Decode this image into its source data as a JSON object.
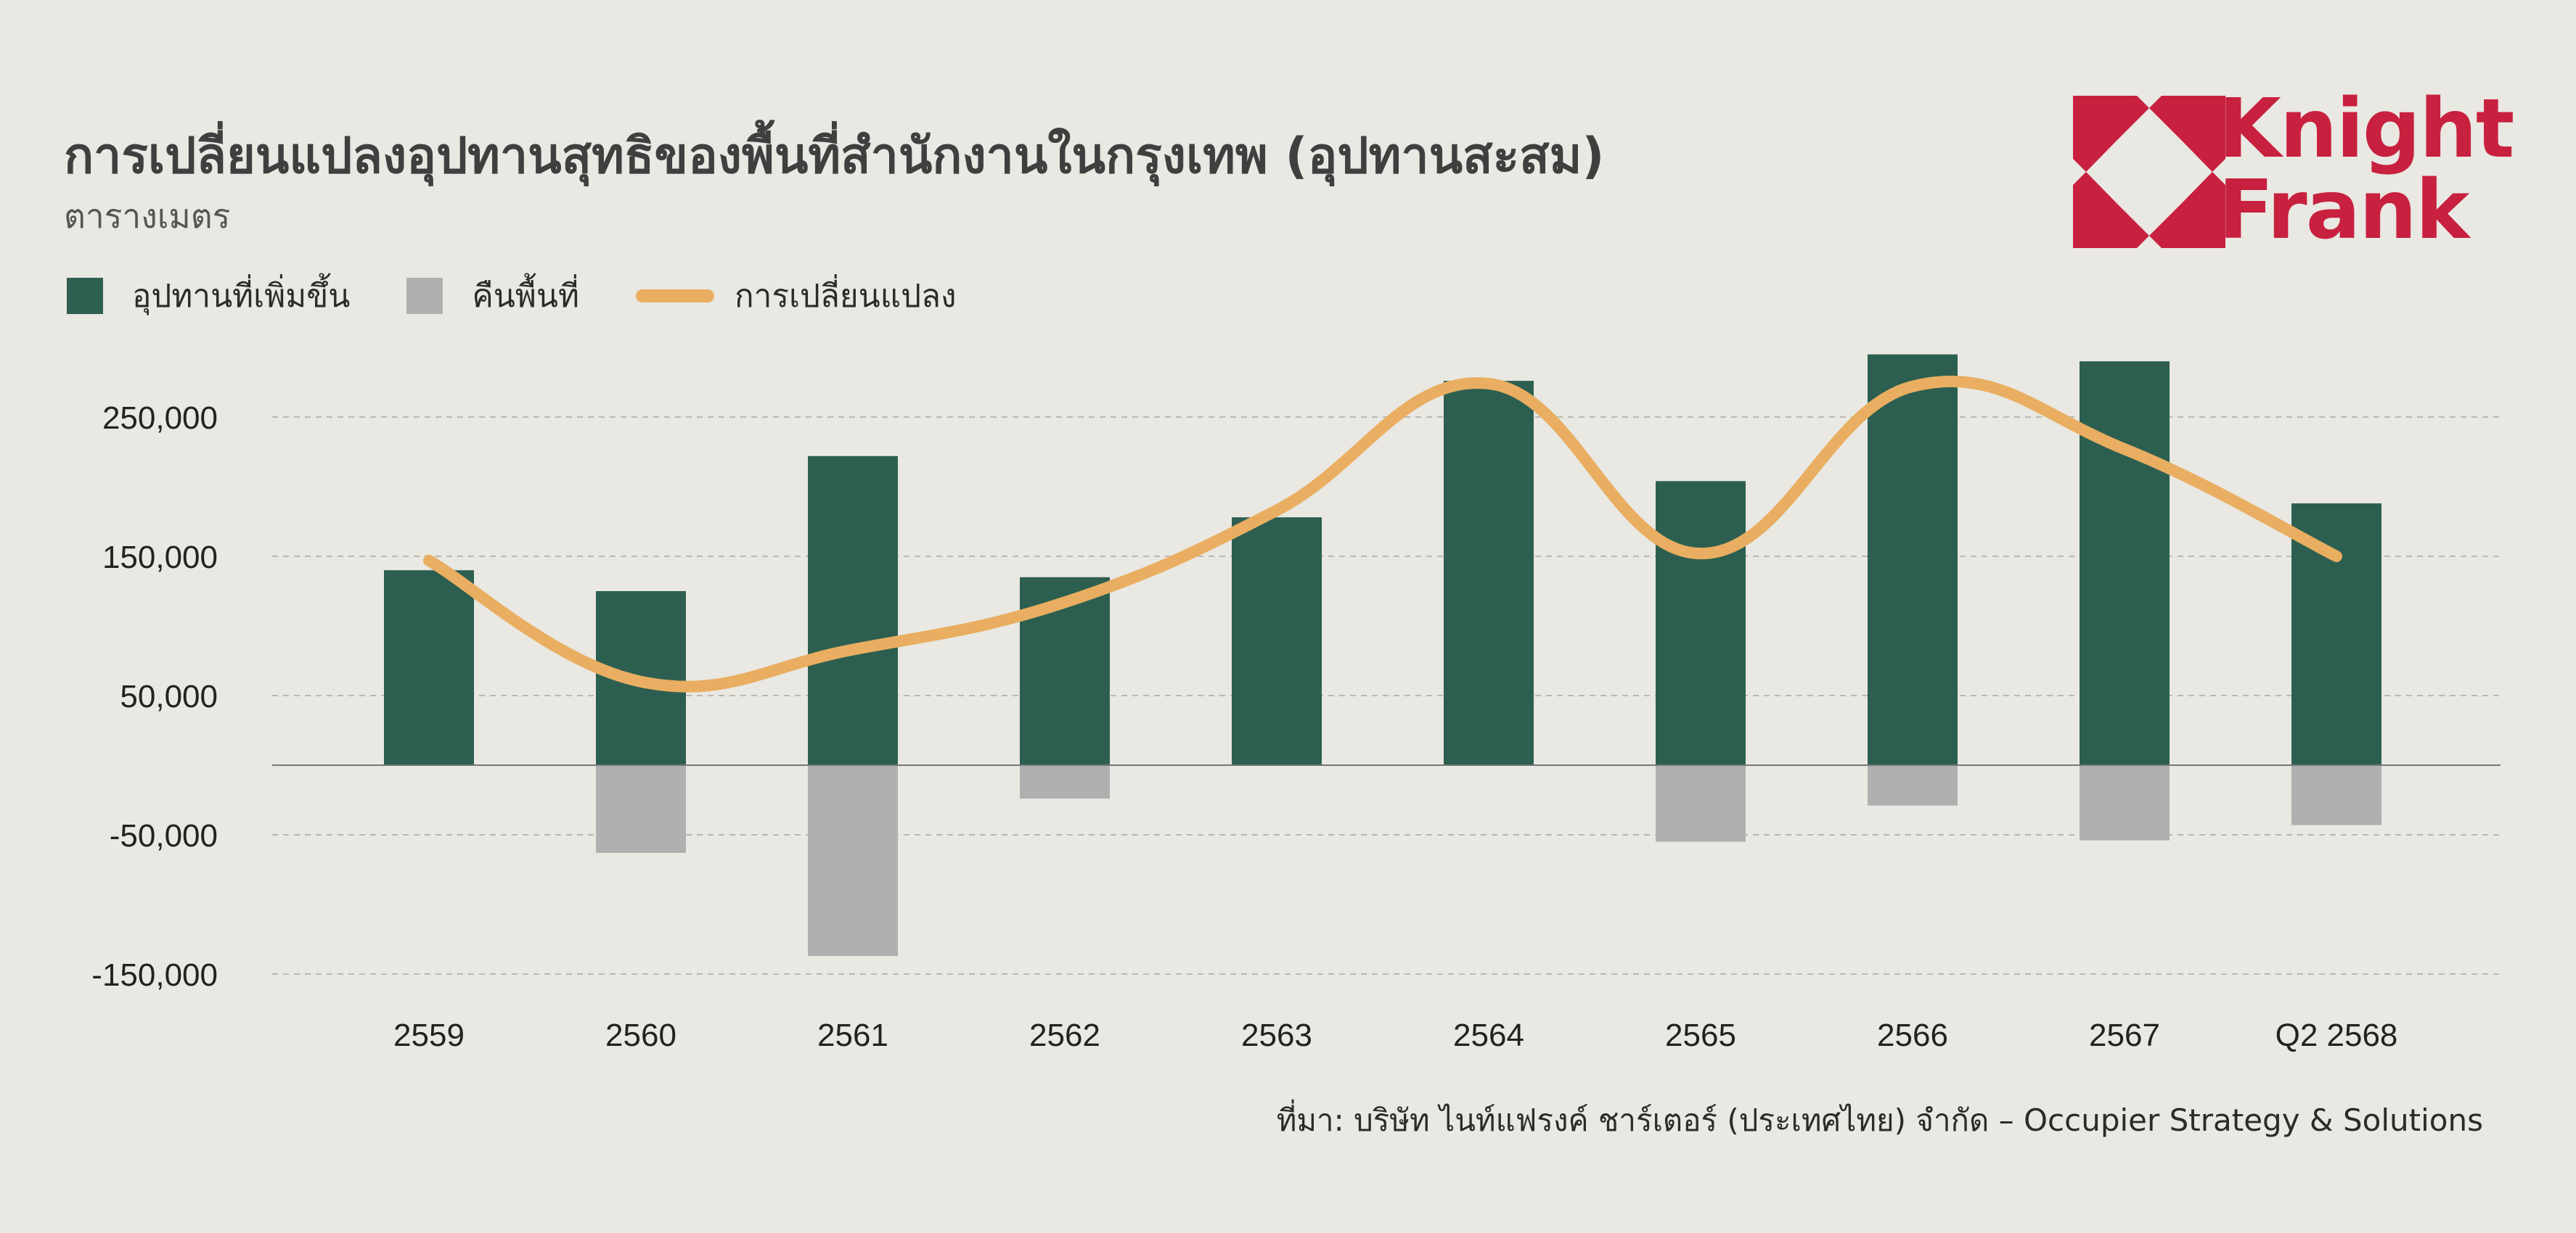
{
  "title": "การเปลี่ยนแปลงอุปทานสุทธิของพื้นที่สำนักงานในกรุงเทพ (อุปทานสะสม)",
  "subtitle": "ตารางเมตร",
  "logo": {
    "line1": "Knight",
    "line2": "Frank",
    "color": "#c8203f"
  },
  "source": "ที่มา: บริษัท ไนท์แฟรงค์ ชาร์เตอร์ (ประเทศไทย) จำกัด – Occupier Strategy & Solutions",
  "colors": {
    "supply": "#2d5f50",
    "withdrawal": "#b0b0b0",
    "change": "#e9ae61"
  },
  "chart_data": {
    "type": "bar",
    "categories": [
      "2559",
      "2560",
      "2561",
      "2562",
      "2563",
      "2564",
      "2565",
      "2566",
      "2567",
      "Q2 2568"
    ],
    "series": [
      {
        "name": "อุปทานที่เพิ่มขึ้น",
        "type": "bar",
        "values": [
          140000,
          125000,
          222000,
          135000,
          178000,
          276000,
          204000,
          295000,
          290000,
          188000
        ]
      },
      {
        "name": "คืนพื้นที่",
        "type": "bar",
        "values": [
          0,
          -63000,
          -137000,
          -24000,
          0,
          0,
          -55000,
          -29000,
          -54000,
          -43000
        ]
      },
      {
        "name": "การเปลี่ยนแปลง",
        "type": "line",
        "values": [
          147000,
          60000,
          83000,
          117000,
          183000,
          274000,
          152000,
          272000,
          227000,
          150000
        ]
      }
    ],
    "yticks": [
      250000,
      150000,
      50000,
      -50000,
      -150000
    ],
    "ytick_labels": [
      "250,000",
      "150,000",
      "50,000",
      "-50,000",
      "-150,000"
    ],
    "ylim": [
      -160000,
      300000
    ],
    "grid": true,
    "legend": "top-left"
  }
}
